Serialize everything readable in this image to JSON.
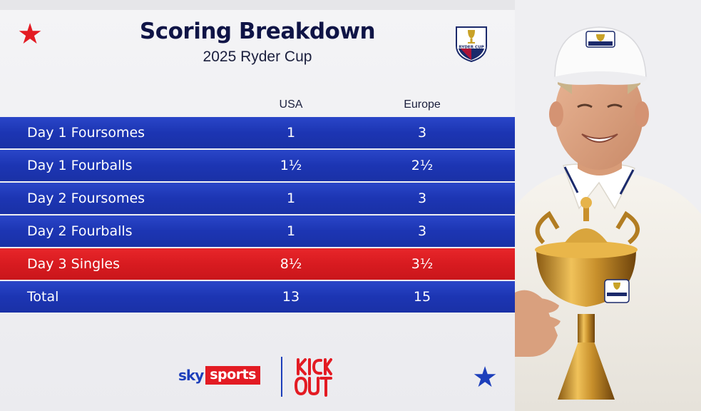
{
  "header": {
    "title": "Scoring Breakdown",
    "subtitle": "2025 Ryder Cup",
    "logo_icon": "ryder-cup-logo-icon"
  },
  "columns": {
    "usa": "USA",
    "europe": "Europe"
  },
  "rows": [
    {
      "label": "Day 1 Foursomes",
      "usa": "1",
      "europe": "3",
      "color": "#1c35b3"
    },
    {
      "label": "Day 1 Fourballs",
      "usa": "1½",
      "europe": "2½",
      "color": "#1c35b3"
    },
    {
      "label": "Day 2 Foursomes",
      "usa": "1",
      "europe": "3",
      "color": "#1c35b3"
    },
    {
      "label": "Day 2 Fourballs",
      "usa": "1",
      "europe": "3",
      "color": "#1c35b3"
    },
    {
      "label": "Day 3 Singles",
      "usa": "8½",
      "europe": "3½",
      "color": "#d81b20"
    },
    {
      "label": "Total",
      "usa": "13",
      "europe": "15",
      "color": "#1c35b3"
    }
  ],
  "footer": {
    "sky": "sky",
    "sports": "sports",
    "kickout_icon": "kick-it-out-logo-icon"
  },
  "colors": {
    "navy": "#0f1446",
    "blue": "#1d3fbb",
    "red": "#e31b23"
  }
}
